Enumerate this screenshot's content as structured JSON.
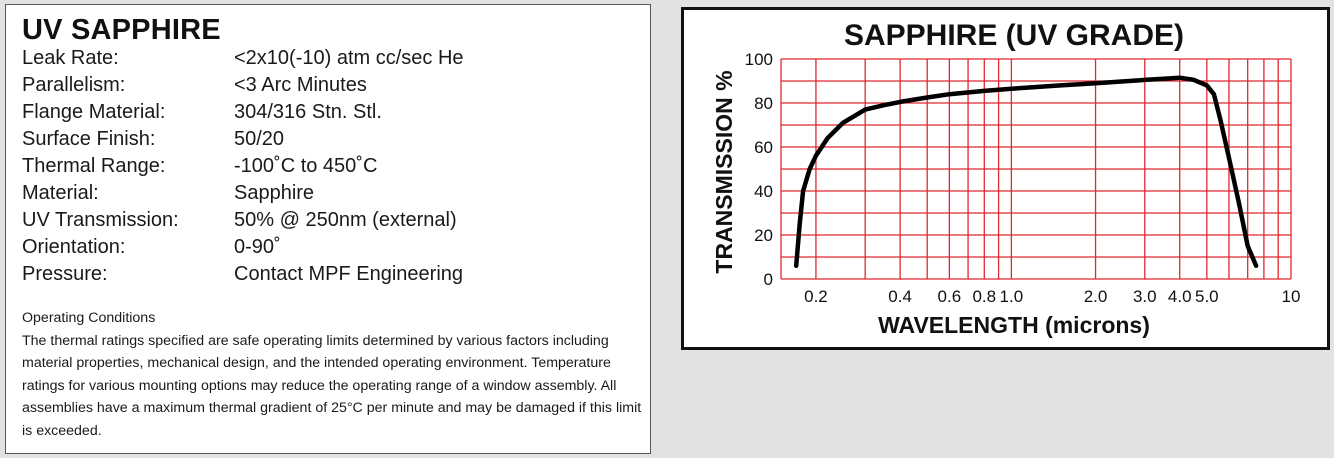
{
  "spec": {
    "title": "UV SAPPHIRE",
    "rows": [
      {
        "label": "Leak Rate:",
        "value": "<2x10(-10) atm cc/sec He"
      },
      {
        "label": "Parallelism:",
        "value": "<3 Arc Minutes"
      },
      {
        "label": "Flange Material:",
        "value": "304/316 Stn. Stl."
      },
      {
        "label": "Surface Finish:",
        "value": "50/20"
      },
      {
        "label": "Thermal Range:",
        "value": "-100˚C to 450˚C"
      },
      {
        "label": "Material:",
        "value": "Sapphire"
      },
      {
        "label": "UV Transmission:",
        "value": "50% @ 250nm (external)"
      },
      {
        "label": "Orientation:",
        "value": "0-90˚"
      },
      {
        "label": "Pressure:",
        "value": "Contact MPF Engineering"
      }
    ]
  },
  "conditions": {
    "heading": "Operating Conditions",
    "body": "The thermal ratings specified are safe operating limits determined by various factors including material properties, mechanical design, and the intended operating environment. Temperature ratings for various mounting options may reduce the operating range of a window assembly. All assemblies have a maximum thermal gradient of 25°C per minute and may be damaged if this limit is exceeded."
  },
  "colors": {
    "grid": "#e0282e",
    "curve": "#000000",
    "page_background": "#e2e2e2"
  },
  "chart_data": {
    "type": "line",
    "title": "SAPPHIRE (UV GRADE)",
    "xlabel": "WAVELENGTH (microns)",
    "ylabel": "TRANSMISSION %",
    "x_scale": "log",
    "xlim": [
      0.15,
      10
    ],
    "ylim": [
      0,
      100
    ],
    "x_ticks": [
      {
        "value": 0.2,
        "label": "0.2"
      },
      {
        "value": 0.4,
        "label": "0.4"
      },
      {
        "value": 0.6,
        "label": "0.6"
      },
      {
        "value": 0.8,
        "label": "0.8"
      },
      {
        "value": 1.0,
        "label": "1.0"
      },
      {
        "value": 2.0,
        "label": "2.0"
      },
      {
        "value": 3.0,
        "label": "3.0"
      },
      {
        "value": 4.0,
        "label": "4.0"
      },
      {
        "value": 5.0,
        "label": "5.0"
      },
      {
        "value": 10,
        "label": "10"
      }
    ],
    "y_ticks": [
      {
        "value": 0,
        "label": "0"
      },
      {
        "value": 20,
        "label": "20"
      },
      {
        "value": 40,
        "label": "40"
      },
      {
        "value": 60,
        "label": "60"
      },
      {
        "value": 80,
        "label": "80"
      },
      {
        "value": 100,
        "label": "100"
      }
    ],
    "grid": true,
    "series": [
      {
        "x": [
          0.17,
          0.175,
          0.18,
          0.19,
          0.2,
          0.22,
          0.25,
          0.3,
          0.35,
          0.4,
          0.5,
          0.6,
          0.8,
          1.0,
          1.5,
          2.0,
          3.0,
          3.5,
          4.0,
          4.5,
          5.0,
          5.3,
          5.6,
          6.0,
          6.5,
          7.0,
          7.5
        ],
        "y": [
          6,
          25,
          40,
          50,
          56,
          64,
          71,
          77,
          79,
          80.5,
          82.5,
          84,
          85.5,
          86.5,
          88,
          89,
          90.5,
          91,
          91.5,
          90.5,
          88,
          84,
          72,
          55,
          35,
          15,
          6
        ]
      }
    ]
  }
}
